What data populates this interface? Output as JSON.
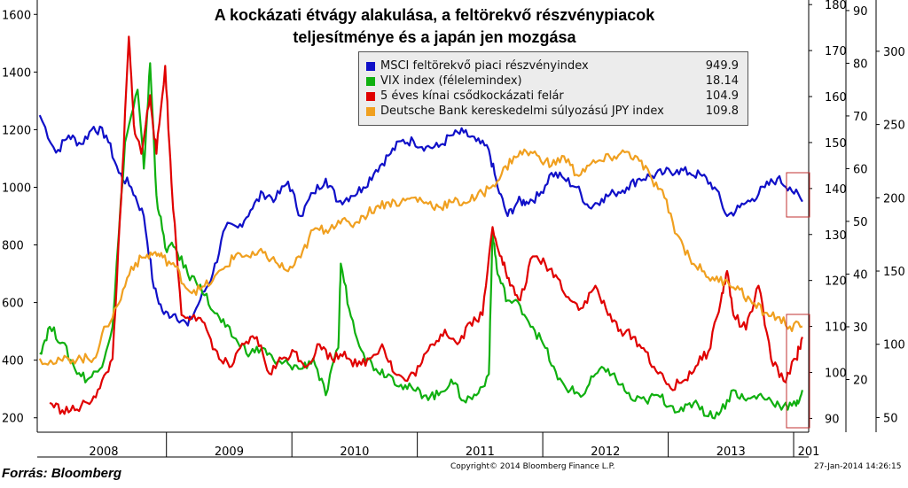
{
  "title_line1": "A kockázati étvágy alakulása, a feltörekvő részvénypiacok",
  "title_line2": "teljesítménye és a japán jen mozgása",
  "source": "Forrás: Bloomberg",
  "copyright": "Copyright© 2014 Bloomberg Finance L.P.",
  "timestamp": "27-Jan-2014 14:26:15",
  "chart_data": {
    "type": "line",
    "x_tick_labels": [
      "2008",
      "2009",
      "2010",
      "2011",
      "2012",
      "2013",
      "201"
    ],
    "axes": {
      "left": {
        "range": [
          150,
          1650
        ],
        "ticks": [
          200,
          400,
          600,
          800,
          1000,
          1200,
          1400,
          1600
        ]
      },
      "right1": {
        "range": [
          87,
          181
        ],
        "ticks": [
          90,
          100,
          110,
          120,
          130,
          140,
          150,
          160,
          170,
          180
        ]
      },
      "right2": {
        "range": [
          10,
          92
        ],
        "ticks": [
          20,
          30,
          40,
          50,
          60,
          70,
          80,
          90
        ]
      },
      "right3": {
        "range": [
          40,
          335
        ],
        "ticks": [
          50,
          100,
          150,
          200,
          250,
          300
        ]
      }
    },
    "legend_position": "top-right",
    "grid": false,
    "series": [
      {
        "name": "MSCI feltörekvő piaci részvényindex",
        "last": "949.9",
        "color": "#1010c8",
        "axis": "left",
        "x": [
          2007.97,
          2008.1,
          2008.2,
          2008.3,
          2008.4,
          2008.5,
          2008.6,
          2008.7,
          2008.8,
          2008.88,
          2008.96,
          2009.05,
          2009.15,
          2009.25,
          2009.35,
          2009.45,
          2009.55,
          2009.65,
          2009.75,
          2009.85,
          2009.95,
          2010.05,
          2010.15,
          2010.25,
          2010.35,
          2010.45,
          2010.55,
          2010.65,
          2010.75,
          2010.85,
          2010.95,
          2011.05,
          2011.15,
          2011.25,
          2011.35,
          2011.45,
          2011.55,
          2011.62,
          2011.7,
          2011.78,
          2011.85,
          2011.95,
          2012.05,
          2012.15,
          2012.25,
          2012.35,
          2012.45,
          2012.55,
          2012.65,
          2012.75,
          2012.85,
          2012.95,
          2013.05,
          2013.15,
          2013.25,
          2013.35,
          2013.45,
          2013.55,
          2013.65,
          2013.75,
          2013.85,
          2013.95,
          2014.05
        ],
        "values": [
          1250,
          1120,
          1180,
          1150,
          1210,
          1180,
          1050,
          1000,
          900,
          650,
          560,
          560,
          520,
          610,
          700,
          860,
          860,
          920,
          980,
          960,
          1020,
          900,
          980,
          1030,
          950,
          970,
          1000,
          1060,
          1110,
          1160,
          1160,
          1140,
          1140,
          1180,
          1190,
          1160,
          1130,
          1000,
          900,
          950,
          950,
          970,
          1050,
          1030,
          1000,
          930,
          960,
          980,
          1000,
          1030,
          1040,
          1050,
          1060,
          1050,
          1040,
          1000,
          900,
          930,
          960,
          1000,
          1030,
          1000,
          950
        ]
      },
      {
        "name": "VIX index (félelemindex)",
        "last": "18.14",
        "color": "#10b010",
        "axis": "right2",
        "x": [
          2007.97,
          2008.05,
          2008.15,
          2008.25,
          2008.35,
          2008.45,
          2008.55,
          2008.65,
          2008.75,
          2008.8,
          2008.85,
          2008.9,
          2008.97,
          2009.05,
          2009.15,
          2009.25,
          2009.35,
          2009.45,
          2009.55,
          2009.65,
          2009.75,
          2009.85,
          2009.95,
          2010.05,
          2010.15,
          2010.25,
          2010.35,
          2010.37,
          2010.45,
          2010.55,
          2010.65,
          2010.75,
          2010.85,
          2010.95,
          2011.05,
          2011.15,
          2011.25,
          2011.35,
          2011.45,
          2011.55,
          2011.58,
          2011.62,
          2011.7,
          2011.8,
          2011.9,
          2012.0,
          2012.1,
          2012.2,
          2012.3,
          2012.4,
          2012.5,
          2012.6,
          2012.7,
          2012.8,
          2012.9,
          2013.0,
          2013.1,
          2013.2,
          2013.3,
          2013.4,
          2013.5,
          2013.6,
          2013.7,
          2013.8,
          2013.9,
          2014.0,
          2014.05
        ],
        "values": [
          25,
          30,
          27,
          22,
          20,
          22,
          30,
          65,
          75,
          60,
          80,
          55,
          45,
          45,
          40,
          38,
          33,
          30,
          27,
          25,
          26,
          23,
          23,
          22,
          24,
          17,
          26,
          42,
          32,
          25,
          22,
          21,
          19,
          18,
          17,
          17,
          20,
          16,
          17,
          21,
          48,
          40,
          35,
          34,
          30,
          26,
          20,
          18,
          17,
          21,
          22,
          19,
          16,
          16,
          17,
          15,
          14,
          16,
          13,
          14,
          18,
          16,
          17,
          16,
          15,
          15,
          18
        ]
      },
      {
        "name": "5 éves kínai csődkockázati felár",
        "last": "104.9",
        "color": "#e00000",
        "axis": "right3",
        "x": [
          2008.05,
          2008.15,
          2008.25,
          2008.35,
          2008.45,
          2008.55,
          2008.62,
          2008.68,
          2008.72,
          2008.78,
          2008.85,
          2008.9,
          2008.97,
          2009.02,
          2009.1,
          2009.2,
          2009.3,
          2009.4,
          2009.5,
          2009.6,
          2009.7,
          2009.8,
          2009.9,
          2010.0,
          2010.1,
          2010.2,
          2010.3,
          2010.4,
          2010.5,
          2010.6,
          2010.7,
          2010.8,
          2010.9,
          2011.0,
          2011.1,
          2011.2,
          2011.3,
          2011.4,
          2011.5,
          2011.58,
          2011.65,
          2011.72,
          2011.8,
          2011.9,
          2012.0,
          2012.1,
          2012.2,
          2012.3,
          2012.4,
          2012.5,
          2012.6,
          2012.7,
          2012.8,
          2012.9,
          2013.0,
          2013.1,
          2013.2,
          2013.3,
          2013.4,
          2013.45,
          2013.5,
          2013.6,
          2013.7,
          2013.8,
          2013.9,
          2014.0,
          2014.05
        ],
        "values": [
          60,
          55,
          55,
          60,
          70,
          90,
          200,
          310,
          250,
          230,
          270,
          230,
          290,
          210,
          120,
          120,
          110,
          90,
          85,
          100,
          105,
          80,
          90,
          95,
          85,
          100,
          90,
          95,
          85,
          90,
          100,
          80,
          75,
          85,
          100,
          110,
          100,
          115,
          120,
          180,
          160,
          140,
          130,
          160,
          155,
          145,
          130,
          125,
          140,
          120,
          110,
          105,
          95,
          80,
          70,
          75,
          85,
          95,
          130,
          150,
          120,
          110,
          140,
          90,
          75,
          90,
          105
        ]
      },
      {
        "name": "Deutsche Bank kereskedelmi súlyozású JPY index",
        "last": "109.8",
        "color": "#f0a020",
        "axis": "right1",
        "x": [
          2007.97,
          2008.1,
          2008.2,
          2008.3,
          2008.4,
          2008.5,
          2008.6,
          2008.7,
          2008.8,
          2008.88,
          2008.95,
          2009.05,
          2009.15,
          2009.25,
          2009.35,
          2009.45,
          2009.55,
          2009.65,
          2009.75,
          2009.85,
          2009.95,
          2010.05,
          2010.15,
          2010.25,
          2010.35,
          2010.45,
          2010.55,
          2010.65,
          2010.75,
          2010.85,
          2010.95,
          2011.05,
          2011.15,
          2011.25,
          2011.35,
          2011.45,
          2011.55,
          2011.65,
          2011.75,
          2011.85,
          2011.95,
          2012.05,
          2012.15,
          2012.25,
          2012.35,
          2012.45,
          2012.55,
          2012.65,
          2012.75,
          2012.85,
          2012.95,
          2013.05,
          2013.15,
          2013.25,
          2013.35,
          2013.45,
          2013.55,
          2013.65,
          2013.75,
          2013.85,
          2013.95,
          2014.05
        ],
        "values": [
          103,
          102,
          103,
          103,
          103,
          110,
          115,
          123,
          125,
          126,
          125,
          123,
          118,
          118,
          120,
          123,
          126,
          125,
          126,
          124,
          122,
          125,
          131,
          131,
          133,
          132,
          134,
          136,
          137,
          137,
          138,
          137,
          136,
          137,
          137,
          138,
          140,
          143,
          147,
          148,
          147,
          145,
          147,
          143,
          145,
          146,
          147,
          148,
          146,
          142,
          138,
          130,
          125,
          122,
          120,
          120,
          118,
          115,
          113,
          112,
          110,
          110
        ]
      }
    ]
  }
}
